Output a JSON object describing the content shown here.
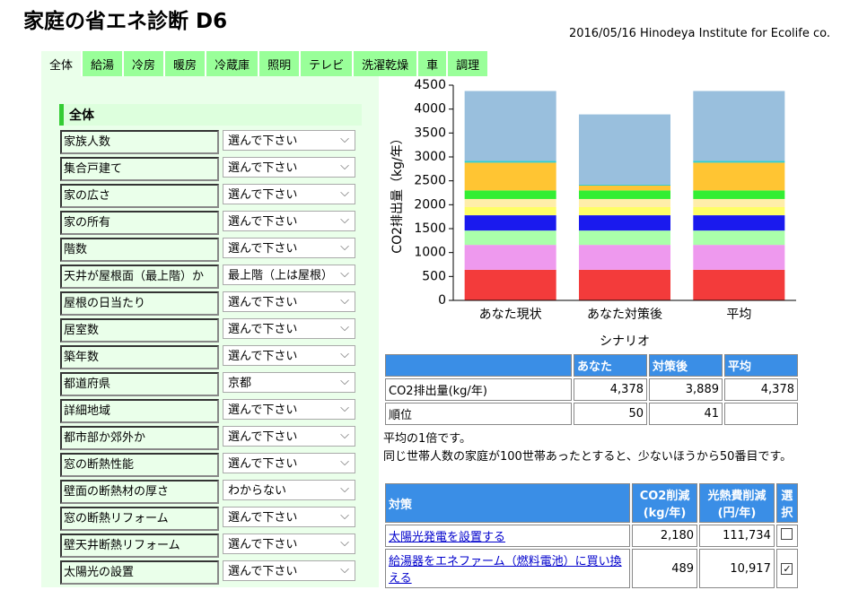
{
  "header": {
    "title": "家庭の省エネ診断 D6",
    "credit": "2016/05/16 Hinodeya Institute for Ecolife co."
  },
  "tabs": [
    "全体",
    "給湯",
    "冷房",
    "暖房",
    "冷蔵庫",
    "照明",
    "テレビ",
    "洗濯乾燥",
    "車",
    "調理"
  ],
  "section": {
    "title": "全体",
    "rows": [
      [
        "家族人数",
        "選んで下さい"
      ],
      [
        "集合戸建て",
        "選んで下さい"
      ],
      [
        "家の広さ",
        "選んで下さい"
      ],
      [
        "家の所有",
        "選んで下さい"
      ],
      [
        "階数",
        "選んで下さい"
      ],
      [
        "天井が屋根面（最上階）か",
        "最上階（上は屋根）"
      ],
      [
        "屋根の日当たり",
        "選んで下さい"
      ],
      [
        "居室数",
        "選んで下さい"
      ],
      [
        "築年数",
        "選んで下さい"
      ],
      [
        "都道府県",
        "京都"
      ],
      [
        "詳細地域",
        "選んで下さい"
      ],
      [
        "都市部か郊外か",
        "選んで下さい"
      ],
      [
        "窓の断熱性能",
        "選んで下さい"
      ],
      [
        "壁面の断熱材の厚さ",
        "わからない"
      ],
      [
        "窓の断熱リフォーム",
        "選んで下さい"
      ],
      [
        "壁天井断熱リフォーム",
        "選んで下さい"
      ],
      [
        "太陽光の設置",
        "選んで下さい"
      ]
    ]
  },
  "chart_data": {
    "type": "bar",
    "stacked": true,
    "x_label": "シナリオ",
    "y_label": "CO2排出量（kg/年）",
    "categories": [
      "あなた現状",
      "あなた対策後",
      "平均"
    ],
    "series": [
      {
        "color": "#f33b3b",
        "values": [
          640,
          640,
          640
        ]
      },
      {
        "color": "#ee99ee",
        "values": [
          520,
          520,
          520
        ]
      },
      {
        "color": "#aaffaa",
        "values": [
          300,
          300,
          300
        ]
      },
      {
        "color": "#1a1aee",
        "values": [
          320,
          320,
          320
        ]
      },
      {
        "color": "#ffff66",
        "values": [
          170,
          170,
          170
        ]
      },
      {
        "color": "#ffeeaa",
        "values": [
          170,
          170,
          170
        ]
      },
      {
        "color": "#33ee33",
        "values": [
          180,
          180,
          180
        ]
      },
      {
        "color": "#ffc533",
        "values": [
          580,
          100,
          580
        ]
      },
      {
        "color": "#33cccc",
        "values": [
          40,
          20,
          40
        ]
      },
      {
        "color": "#99bfdd",
        "values": [
          1458,
          1469,
          1458
        ]
      }
    ],
    "ylim": [
      0,
      4500
    ],
    "yticks": [
      0,
      500,
      1000,
      1500,
      2000,
      2500,
      3000,
      3500,
      4000,
      {
        "value": 4500,
        "label": "4500"
      }
    ],
    "grid": false
  },
  "summary": {
    "header": [
      "あなた",
      "対策後",
      "平均"
    ],
    "rows": [
      [
        "CO2排出量(kg/年)",
        "4,378",
        "3,889",
        "4,378"
      ],
      [
        "順位",
        "50",
        "41"
      ]
    ],
    "notes": [
      "平均の1倍です。",
      "同じ世帯人数の家庭が100世帯あったとすると、少ないほうから50番目です。"
    ]
  },
  "measures": {
    "header": [
      "対策",
      [
        "CO2削減",
        "(kg/年)"
      ],
      [
        "光熱費削減",
        "(円/年)"
      ],
      [
        "選",
        "択"
      ]
    ],
    "rows": [
      {
        "name": "太陽光発電を設置する",
        "co2": "2,180",
        "cost": "111,734",
        "checked": false
      },
      {
        "name": "給湯器をエネファーム（燃料電池）に買い換える",
        "co2": "489",
        "cost": "10,917",
        "checked": true
      }
    ]
  }
}
